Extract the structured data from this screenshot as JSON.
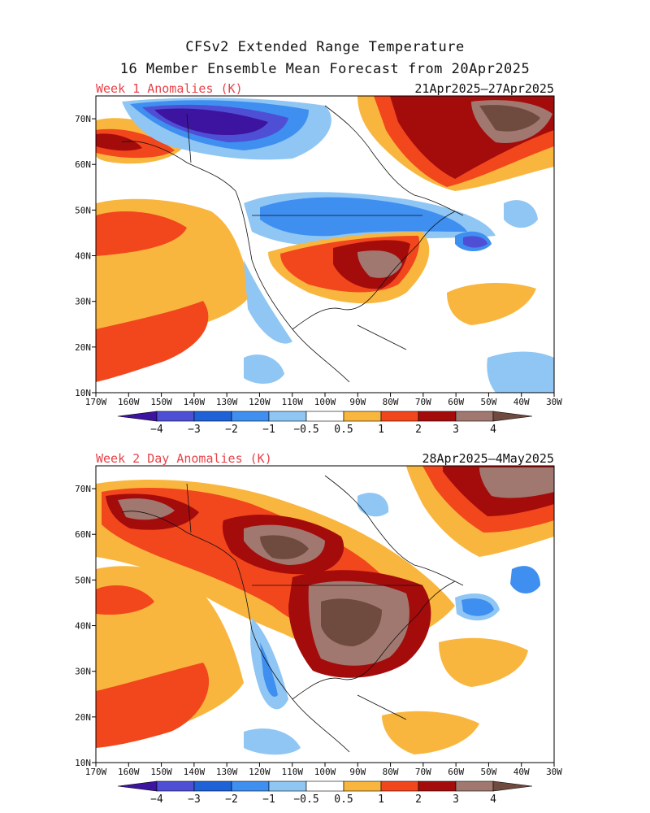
{
  "title_line1": "CFSv2 Extended Range Temperature",
  "title_line2": "16 Member Ensemble Mean Forecast from 20Apr2025",
  "panels": [
    {
      "label": "Week 1 Anomalies (K)",
      "dates": "21Apr2025–27Apr2025"
    },
    {
      "label": "Week 2 Day Anomalies (K)",
      "dates": "28Apr2025–4May2025"
    }
  ],
  "lat_labels": [
    "10N",
    "20N",
    "30N",
    "40N",
    "50N",
    "60N",
    "70N"
  ],
  "lon_labels": [
    "170W",
    "160W",
    "150W",
    "140W",
    "130W",
    "120W",
    "110W",
    "100W",
    "90W",
    "80W",
    "70W",
    "60W",
    "50W",
    "40W",
    "30W"
  ],
  "colorbar": {
    "labels": [
      "−4",
      "−3",
      "−2",
      "−1",
      "−0.5",
      "0.5",
      "1",
      "2",
      "3",
      "4"
    ],
    "colors": [
      "#3c14a0",
      "#4f4fd6",
      "#1f62d8",
      "#3f8ff0",
      "#8fc6f4",
      "#ffffff",
      "#f9b63e",
      "#f2461d",
      "#a40c0c",
      "#a07870",
      "#6f4a3e"
    ]
  }
}
